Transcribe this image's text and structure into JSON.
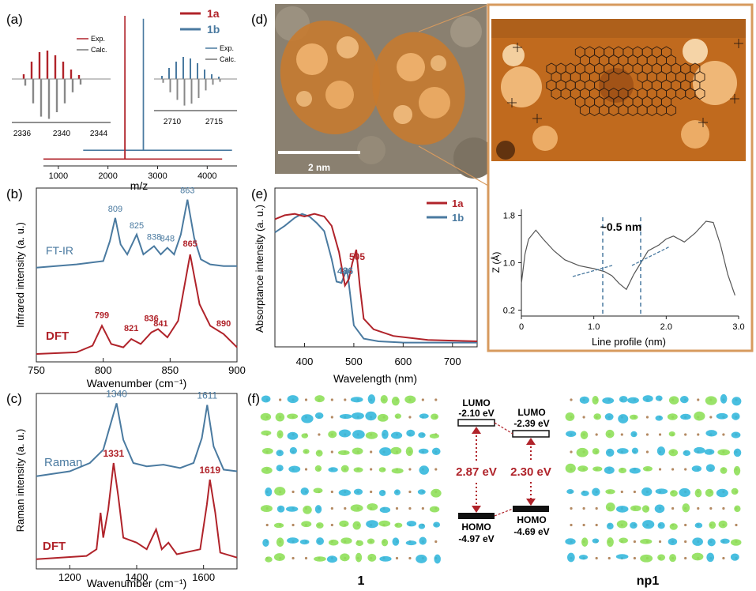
{
  "colors": {
    "red": "#b0232a",
    "blue": "#4a7aa0",
    "grey": "#7a7a7a",
    "orange": "#d79a5e",
    "dark": "#222222"
  },
  "panels": {
    "a": {
      "label": "(a)",
      "legend": [
        "1a",
        "1b"
      ],
      "xlabel": "m/z",
      "xticks": [
        "1000",
        "2000",
        "3000",
        "4000"
      ],
      "inset_left": {
        "legend": [
          "Exp.",
          "Calc."
        ],
        "ticks": [
          "2336",
          "2340",
          "2344"
        ]
      },
      "inset_right": {
        "legend": [
          "Exp.",
          "Calc."
        ],
        "ticks": [
          "2710",
          "2715"
        ]
      }
    },
    "b": {
      "label": "(b)",
      "ylabel": "Infrared intensity (a. u.)",
      "xlabel": "Wavenumber (cm⁻¹)",
      "xticks": [
        "750",
        "800",
        "850",
        "900"
      ],
      "series_labels": [
        "FT-IR",
        "DFT"
      ],
      "peaks_exp": [
        "809",
        "825",
        "838",
        "848",
        "863"
      ],
      "peaks_dft": [
        "799",
        "821",
        "836",
        "841",
        "865",
        "890"
      ]
    },
    "c": {
      "label": "(c)",
      "ylabel": "Raman intensity (a. u.)",
      "xlabel": "Wavenumber (cm⁻¹)",
      "xticks": [
        "1200",
        "1400",
        "1600"
      ],
      "series_labels": [
        "Raman",
        "DFT"
      ],
      "peaks_exp": [
        "1340",
        "1611"
      ],
      "peaks_dft": [
        "1331",
        "1619"
      ]
    },
    "d": {
      "label": "(d)",
      "scalebar": "2 nm"
    },
    "e": {
      "label": "(e)",
      "legend": [
        "1a",
        "1b"
      ],
      "ylabel": "Absorptance intensity (a. u.)",
      "xlabel": "Wavelength (nm)",
      "xticks": [
        "400",
        "500",
        "600",
        "700"
      ],
      "peaks": [
        "505",
        "486"
      ]
    },
    "profile": {
      "ylabel": "Z (Å)",
      "xlabel": "Line profile (nm)",
      "xticks": [
        "0",
        "1.0",
        "2.0",
        "3.0"
      ],
      "yticks": [
        "0.2",
        "1.0",
        "1.8"
      ],
      "annotation": "~0.5 nm"
    },
    "f": {
      "label": "(f)",
      "lumo_1": [
        "LUMO",
        "-2.10 eV"
      ],
      "lumo_np1": [
        "LUMO",
        "-2.39 eV"
      ],
      "homo_1": [
        "HOMO",
        "-4.97 eV"
      ],
      "homo_np1": [
        "HOMO",
        "-4.69 eV"
      ],
      "gap_1": "2.87 eV",
      "gap_np1": "2.30 eV",
      "name_1": "1",
      "name_np1": "np1"
    }
  },
  "chart_data": [
    {
      "type": "line",
      "panel": "a",
      "xlabel": "m/z",
      "xlim": [
        700,
        4600
      ],
      "series": [
        {
          "name": "1a",
          "x": [
            700,
            2339,
            2341,
            2345,
            4300
          ],
          "y": [
            0.02,
            0.02,
            1.0,
            0.02,
            0.02
          ]
        },
        {
          "name": "1b",
          "x": [
            1500,
            2712,
            2714,
            2716,
            4500
          ],
          "y": [
            0.08,
            0.08,
            0.98,
            0.08,
            0.08
          ]
        }
      ]
    },
    {
      "type": "line",
      "panel": "b",
      "xlabel": "Wavenumber (cm⁻¹)",
      "xlim": [
        750,
        900
      ],
      "series": [
        {
          "name": "FT-IR",
          "x": [
            750,
            780,
            800,
            805,
            809,
            813,
            818,
            825,
            830,
            838,
            843,
            848,
            853,
            858,
            863,
            868,
            873,
            880,
            890,
            900
          ],
          "y": [
            0.52,
            0.54,
            0.56,
            0.68,
            0.82,
            0.66,
            0.6,
            0.72,
            0.6,
            0.65,
            0.6,
            0.64,
            0.6,
            0.72,
            0.93,
            0.7,
            0.57,
            0.54,
            0.53,
            0.53
          ]
        },
        {
          "name": "DFT",
          "x": [
            750,
            780,
            792,
            799,
            806,
            815,
            821,
            828,
            836,
            841,
            848,
            856,
            865,
            872,
            880,
            890,
            900
          ],
          "y": [
            0.0,
            0.01,
            0.05,
            0.17,
            0.06,
            0.04,
            0.09,
            0.06,
            0.13,
            0.15,
            0.1,
            0.2,
            0.6,
            0.3,
            0.17,
            0.12,
            0.04
          ]
        }
      ]
    },
    {
      "type": "line",
      "panel": "c",
      "xlabel": "Wavenumber (cm⁻¹)",
      "xlim": [
        1100,
        1700
      ],
      "series": [
        {
          "name": "Raman",
          "x": [
            1100,
            1200,
            1260,
            1300,
            1320,
            1340,
            1360,
            1390,
            1430,
            1480,
            1530,
            1570,
            1595,
            1611,
            1630,
            1660,
            1700
          ],
          "y": [
            0.52,
            0.55,
            0.6,
            0.68,
            0.82,
            0.96,
            0.74,
            0.6,
            0.58,
            0.59,
            0.57,
            0.6,
            0.75,
            0.95,
            0.7,
            0.56,
            0.55
          ]
        },
        {
          "name": "DFT",
          "x": [
            1100,
            1250,
            1280,
            1292,
            1300,
            1315,
            1331,
            1345,
            1360,
            1400,
            1430,
            1458,
            1475,
            1495,
            1520,
            1590,
            1610,
            1619,
            1635,
            1650,
            1700
          ],
          "y": [
            0.02,
            0.04,
            0.08,
            0.3,
            0.15,
            0.32,
            0.6,
            0.4,
            0.15,
            0.12,
            0.08,
            0.2,
            0.08,
            0.12,
            0.05,
            0.08,
            0.35,
            0.5,
            0.3,
            0.06,
            0.03
          ]
        }
      ]
    },
    {
      "type": "line",
      "panel": "e",
      "xlabel": "Wavelength (nm)",
      "xlim": [
        340,
        750
      ],
      "series": [
        {
          "name": "1a",
          "x": [
            340,
            360,
            380,
            400,
            420,
            440,
            455,
            470,
            482,
            490,
            497,
            505,
            512,
            520,
            540,
            580,
            650,
            750
          ],
          "y": [
            0.95,
            0.98,
            0.99,
            0.97,
            0.99,
            0.97,
            0.9,
            0.7,
            0.45,
            0.5,
            0.62,
            0.72,
            0.45,
            0.2,
            0.12,
            0.07,
            0.04,
            0.03
          ]
        },
        {
          "name": "1b",
          "x": [
            340,
            360,
            380,
            395,
            410,
            425,
            440,
            455,
            465,
            475,
            486,
            492,
            500,
            520,
            550,
            600,
            750
          ],
          "y": [
            0.85,
            0.9,
            0.96,
            0.99,
            0.97,
            0.92,
            0.86,
            0.65,
            0.48,
            0.47,
            0.58,
            0.4,
            0.15,
            0.05,
            0.03,
            0.02,
            0.02
          ]
        }
      ]
    },
    {
      "type": "line",
      "panel": "profile",
      "xlabel": "Line profile (nm)",
      "ylabel": "Z (Å)",
      "xlim": [
        0,
        3.0
      ],
      "ylim": [
        0.1,
        1.9
      ],
      "series": [
        {
          "x": [
            0.0,
            0.05,
            0.1,
            0.2,
            0.3,
            0.45,
            0.6,
            0.8,
            1.0,
            1.15,
            1.25,
            1.35,
            1.45,
            1.55,
            1.65,
            1.75,
            1.9,
            2.0,
            2.1,
            2.25,
            2.4,
            2.55,
            2.65,
            2.75,
            2.85,
            2.95
          ],
          "y": [
            0.65,
            1.15,
            1.4,
            1.55,
            1.4,
            1.2,
            1.05,
            0.95,
            0.9,
            0.85,
            0.78,
            0.65,
            0.55,
            0.8,
            1.0,
            1.2,
            1.3,
            1.4,
            1.45,
            1.35,
            1.5,
            1.7,
            1.68,
            1.3,
            0.8,
            0.45
          ]
        }
      ]
    }
  ]
}
